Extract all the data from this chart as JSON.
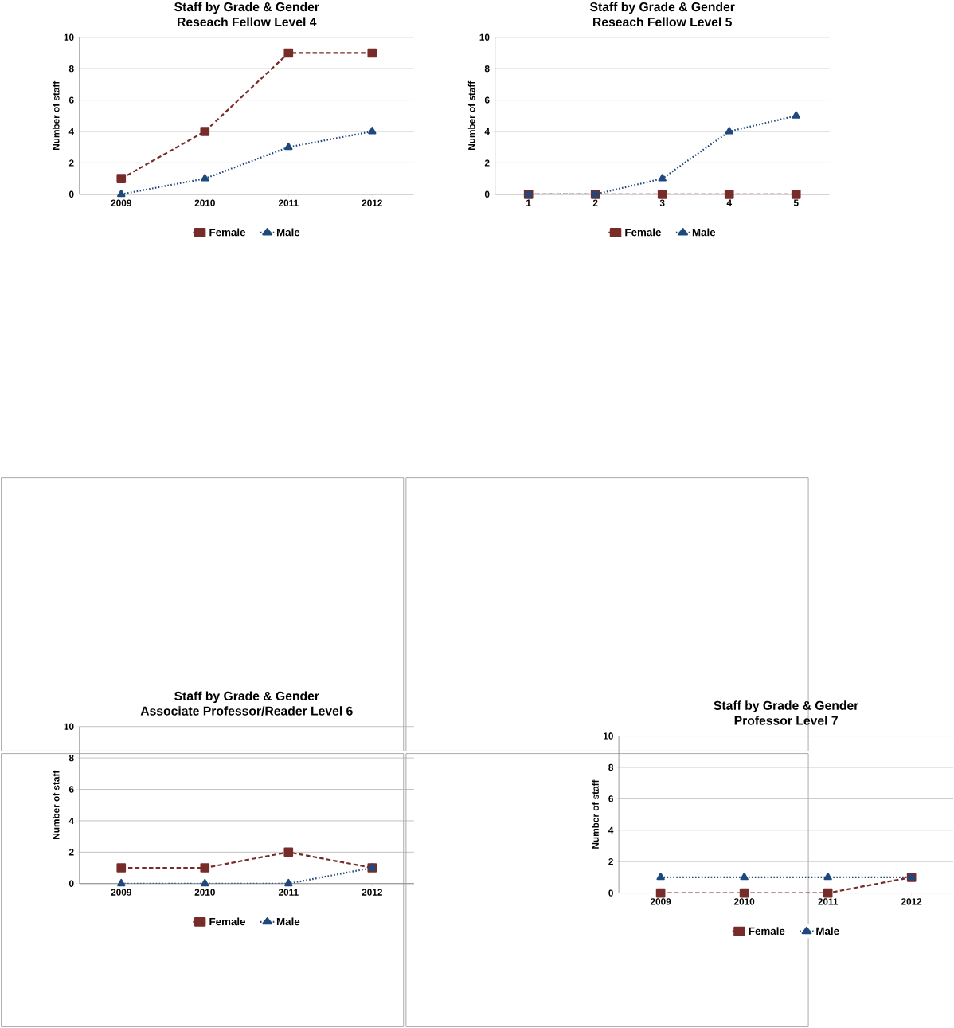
{
  "chart_data": [
    {
      "type": "line",
      "title": "Staff by Grade & Gender",
      "subtitle": "Reseach Fellow Level 4",
      "ylabel": "Number of staff",
      "categories": [
        "2009",
        "2010",
        "2011",
        "2012"
      ],
      "ylim": [
        0,
        10
      ],
      "yticks": [
        0,
        2,
        4,
        6,
        8,
        10
      ],
      "grid": "y",
      "legend": "bottom",
      "series": [
        {
          "name": "Female",
          "color": "#772c2a",
          "marker": "square",
          "line_style": "dashed",
          "values": [
            1,
            4,
            9,
            9
          ]
        },
        {
          "name": "Male",
          "color": "#1f497d",
          "marker": "triangle",
          "line_style": "dotted",
          "values": [
            0,
            1,
            3,
            4
          ]
        }
      ]
    },
    {
      "type": "line",
      "title": "Staff by Grade & Gender",
      "subtitle": "Reseach Fellow Level 5",
      "ylabel": "Number of staff",
      "categories": [
        "1",
        "2",
        "3",
        "4",
        "5"
      ],
      "ylim": [
        0,
        10
      ],
      "yticks": [
        0,
        2,
        4,
        6,
        8,
        10
      ],
      "grid": "y",
      "legend": "bottom",
      "series": [
        {
          "name": "Female",
          "color": "#772c2a",
          "marker": "square",
          "line_style": "dashed",
          "values": [
            0,
            0,
            0,
            0,
            0
          ]
        },
        {
          "name": "Male",
          "color": "#1f497d",
          "marker": "triangle",
          "line_style": "dotted",
          "values": [
            0,
            0,
            1,
            4,
            5
          ]
        }
      ]
    },
    {
      "type": "line",
      "title": "Staff by Grade & Gender",
      "subtitle": "Associate Professor/Reader Level 6",
      "ylabel": "Number of staff",
      "categories": [
        "2009",
        "2010",
        "2011",
        "2012"
      ],
      "ylim": [
        0,
        10
      ],
      "yticks": [
        0,
        2,
        4,
        6,
        8,
        10
      ],
      "grid": "y",
      "legend": "bottom",
      "series": [
        {
          "name": "Female",
          "color": "#772c2a",
          "marker": "square",
          "line_style": "dashed",
          "values": [
            1,
            1,
            2,
            1
          ]
        },
        {
          "name": "Male",
          "color": "#1f497d",
          "marker": "triangle",
          "line_style": "dotted",
          "values": [
            0,
            0,
            0,
            1
          ]
        }
      ]
    },
    {
      "type": "line",
      "title": "Staff by Grade & Gender",
      "subtitle": "Professor  Level 7",
      "ylabel": "Number of staff",
      "categories": [
        "2009",
        "2010",
        "2011",
        "2012"
      ],
      "ylim": [
        0,
        10
      ],
      "yticks": [
        0,
        2,
        4,
        6,
        8,
        10
      ],
      "grid": "y",
      "legend": "bottom",
      "series": [
        {
          "name": "Female",
          "color": "#772c2a",
          "marker": "square",
          "line_style": "dashed",
          "values": [
            0,
            0,
            0,
            1
          ]
        },
        {
          "name": "Male",
          "color": "#1f497d",
          "marker": "triangle",
          "line_style": "dotted",
          "values": [
            1,
            1,
            1,
            1
          ]
        }
      ]
    }
  ]
}
